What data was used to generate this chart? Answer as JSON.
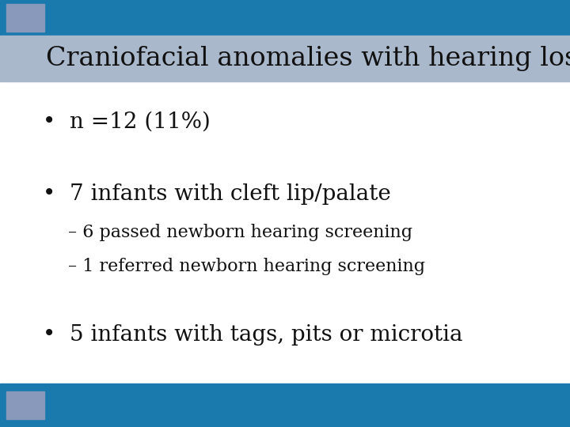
{
  "title": "Craniofacial anomalies with hearing loss",
  "title_fontsize": 24,
  "title_color": "#111111",
  "title_bg_color": "#aab8cc",
  "header_bar_color": "#1a7aad",
  "footer_bar_color": "#1a7aad",
  "square_color": "#8899bb",
  "bg_color": "#ffffff",
  "bullet1": "n =12 (11%)",
  "bullet2": "7 infants with cleft lip/palate",
  "sub1": "– 6 passed newborn hearing screening",
  "sub2": "– 1 referred newborn hearing screening",
  "bullet3": "5 infants with tags, pits or microtia",
  "text_color": "#111111",
  "bullet_fontsize": 20,
  "sub_fontsize": 16
}
